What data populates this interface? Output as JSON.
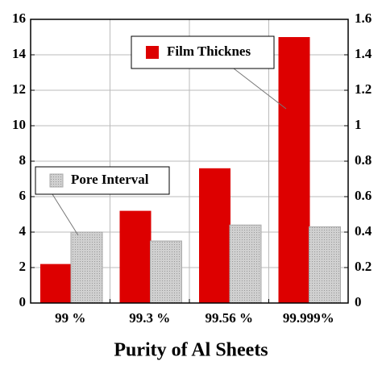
{
  "chart_data": {
    "type": "bar",
    "xlabel": "Purity of Al Sheets",
    "categories": [
      "99 %",
      "99.3 %",
      "99.56 %",
      "99.999%"
    ],
    "series": [
      {
        "name": "Film Thicknes",
        "color": "#dd0000",
        "values": [
          2.2,
          5.2,
          7.6,
          15.0
        ]
      },
      {
        "name": "Pore Interval",
        "color": "#c8c8c8",
        "axis": "y2",
        "values": [
          0.4,
          0.35,
          0.44,
          0.43
        ]
      }
    ],
    "ylim": [
      0,
      16
    ],
    "yticks": [
      0,
      2,
      4,
      6,
      8,
      10,
      12,
      14,
      16
    ],
    "y2lim": [
      0,
      1.6
    ],
    "y2ticks": [
      0,
      0.2,
      0.4,
      0.6,
      0.8,
      1,
      1.2,
      1.4,
      1.6
    ],
    "grid": true
  }
}
